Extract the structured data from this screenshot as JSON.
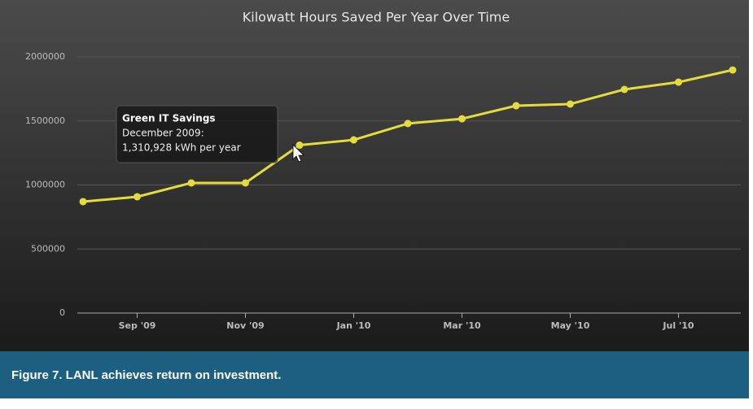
{
  "chart_data": {
    "type": "line",
    "title": "Kilowatt Hours Saved Per Year Over Time",
    "categories": [
      null,
      "Sep '09",
      null,
      "Nov '09",
      null,
      "Jan '10",
      null,
      "Mar '10",
      null,
      "May '10",
      null,
      "Jul '10",
      null
    ],
    "series": [
      {
        "name": "Green IT Savings",
        "color": "#e3dc3c",
        "values": [
          870000,
          908000,
          1016000,
          1016000,
          1310928,
          1352000,
          1480000,
          1517000,
          1619000,
          1632000,
          1746000,
          1803000,
          1898000
        ]
      }
    ],
    "ylim": [
      0,
      2000000
    ],
    "yticks": [
      0,
      500000,
      1000000,
      1500000,
      2000000
    ],
    "grid": true,
    "tooltip": {
      "title": "Green IT Savings",
      "date": "December 2009:",
      "text": "1,310,928 kWh per year"
    }
  },
  "caption": "Figure 7. LANL achieves return on investment."
}
